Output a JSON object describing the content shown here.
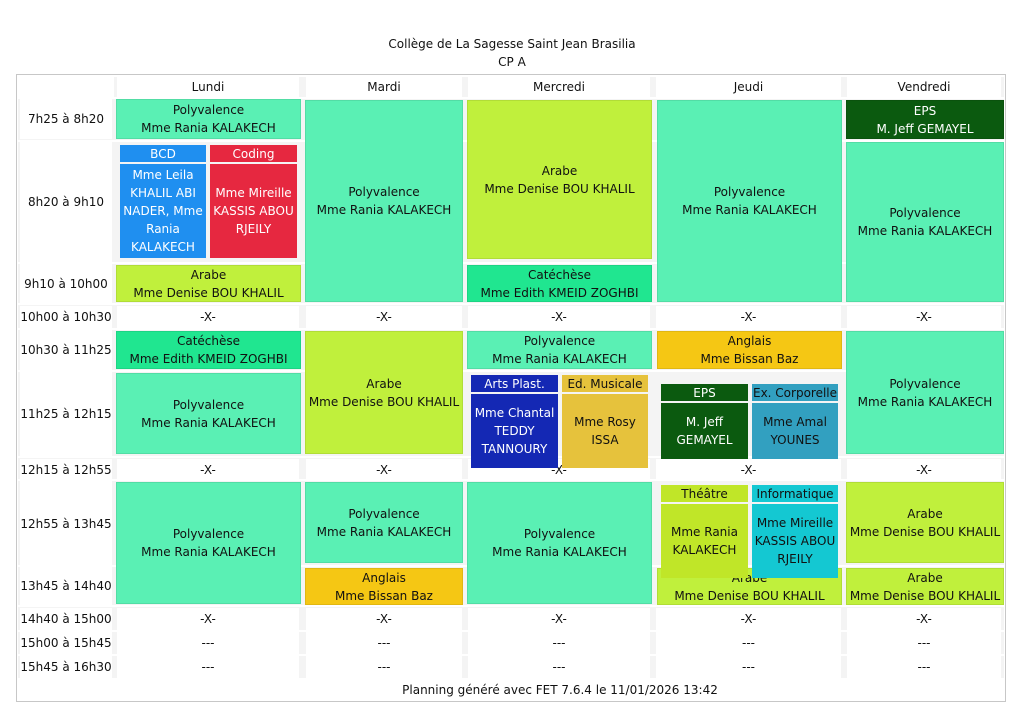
{
  "title": "Collège de La Sagesse Saint Jean Brasilia",
  "subtitle": "CP A",
  "days": [
    "Lundi",
    "Mardi",
    "Mercredi",
    "Jeudi",
    "Vendredi"
  ],
  "times": [
    "7h25 à 8h20",
    "8h20 à 9h10",
    "9h10 à 10h00",
    "10h00 à 10h30",
    "10h30 à 11h25",
    "11h25 à 12h15",
    "12h15 à 12h55",
    "12h55 à 13h45",
    "13h45 à 14h40",
    "14h40 à 15h00",
    "15h00 à 15h45",
    "15h45 à 16h30"
  ],
  "break_mark": "-X-",
  "empty_mark": "---",
  "colors": {
    "polyvalence": "#5af0b4",
    "arabe": "#c0f03c",
    "catechese": "#20e690",
    "eps": "#0b5a0f",
    "anglais": "#f5c714",
    "bcd": "#1f8ff0",
    "coding": "#e62840",
    "arts": "#1428b4",
    "musique": "#e6c23c",
    "corporelle": "#32a0c0",
    "theatre": "#c0e628",
    "informatique": "#14c8d2"
  },
  "activities": {
    "lun_1": {
      "subject": "Polyvalence",
      "teacher": "Mme Rania KALAKECH"
    },
    "lun_bcd": {
      "subject": "BCD",
      "teacher": "Mme Leila KHALIL ABI NADER, Mme Rania KALAKECH"
    },
    "lun_coding": {
      "subject": "Coding",
      "teacher": "Mme Mireille KASSIS ABOU RJEILY"
    },
    "lun_3": {
      "subject": "Arabe",
      "teacher": "Mme Denise BOU KHALIL"
    },
    "lun_5": {
      "subject": "Catéchèse",
      "teacher": "Mme Edith KMEID ZOGHBI"
    },
    "lun_6": {
      "subject": "Polyvalence",
      "teacher": "Mme Rania KALAKECH"
    },
    "lun_8": {
      "subject": "Polyvalence",
      "teacher": "Mme Rania KALAKECH"
    },
    "mar_1": {
      "subject": "Polyvalence",
      "teacher": "Mme Rania KALAKECH"
    },
    "mar_5": {
      "subject": "Arabe",
      "teacher": "Mme Denise BOU KHALIL"
    },
    "mar_8": {
      "subject": "Polyvalence",
      "teacher": "Mme Rania KALAKECH"
    },
    "mar_9": {
      "subject": "Anglais",
      "teacher": "Mme Bissan Baz"
    },
    "mer_1": {
      "subject": "Arabe",
      "teacher": "Mme Denise BOU KHALIL"
    },
    "mer_3": {
      "subject": "Catéchèse",
      "teacher": "Mme Edith KMEID ZOGHBI"
    },
    "mer_5": {
      "subject": "Polyvalence",
      "teacher": "Mme Rania KALAKECH"
    },
    "mer_arts": {
      "subject": "Arts Plast.",
      "teacher": "Mme Chantal TEDDY TANNOURY"
    },
    "mer_musique": {
      "subject": "Ed. Musicale",
      "teacher": "Mme Rosy ISSA"
    },
    "mer_8": {
      "subject": "Polyvalence",
      "teacher": "Mme Rania KALAKECH"
    },
    "jeu_1": {
      "subject": "Polyvalence",
      "teacher": "Mme Rania KALAKECH"
    },
    "jeu_5": {
      "subject": "Anglais",
      "teacher": "Mme Bissan Baz"
    },
    "jeu_eps": {
      "subject": "EPS",
      "teacher": "M. Jeff GEMAYEL"
    },
    "jeu_corp": {
      "subject": "Ex. Corporelle",
      "teacher": "Mme Amal YOUNES"
    },
    "jeu_theatre": {
      "subject": "Théâtre",
      "teacher": "Mme Rania KALAKECH"
    },
    "jeu_info": {
      "subject": "Informatique",
      "teacher": "Mme Mireille KASSIS ABOU RJEILY"
    },
    "jeu_9": {
      "subject": "Arabe",
      "teacher": "Mme Denise BOU KHALIL"
    },
    "ven_1": {
      "subject": "EPS",
      "teacher": "M. Jeff GEMAYEL"
    },
    "ven_2": {
      "subject": "Polyvalence",
      "teacher": "Mme Rania KALAKECH"
    },
    "ven_5": {
      "subject": "Polyvalence",
      "teacher": "Mme Rania KALAKECH"
    },
    "ven_8": {
      "subject": "Arabe",
      "teacher": "Mme Denise BOU KHALIL"
    },
    "ven_9": {
      "subject": "Arabe",
      "teacher": "Mme Denise BOU KHALIL"
    }
  },
  "footer": "Planning généré avec FET 7.6.4 le 11/01/2026 13:42"
}
